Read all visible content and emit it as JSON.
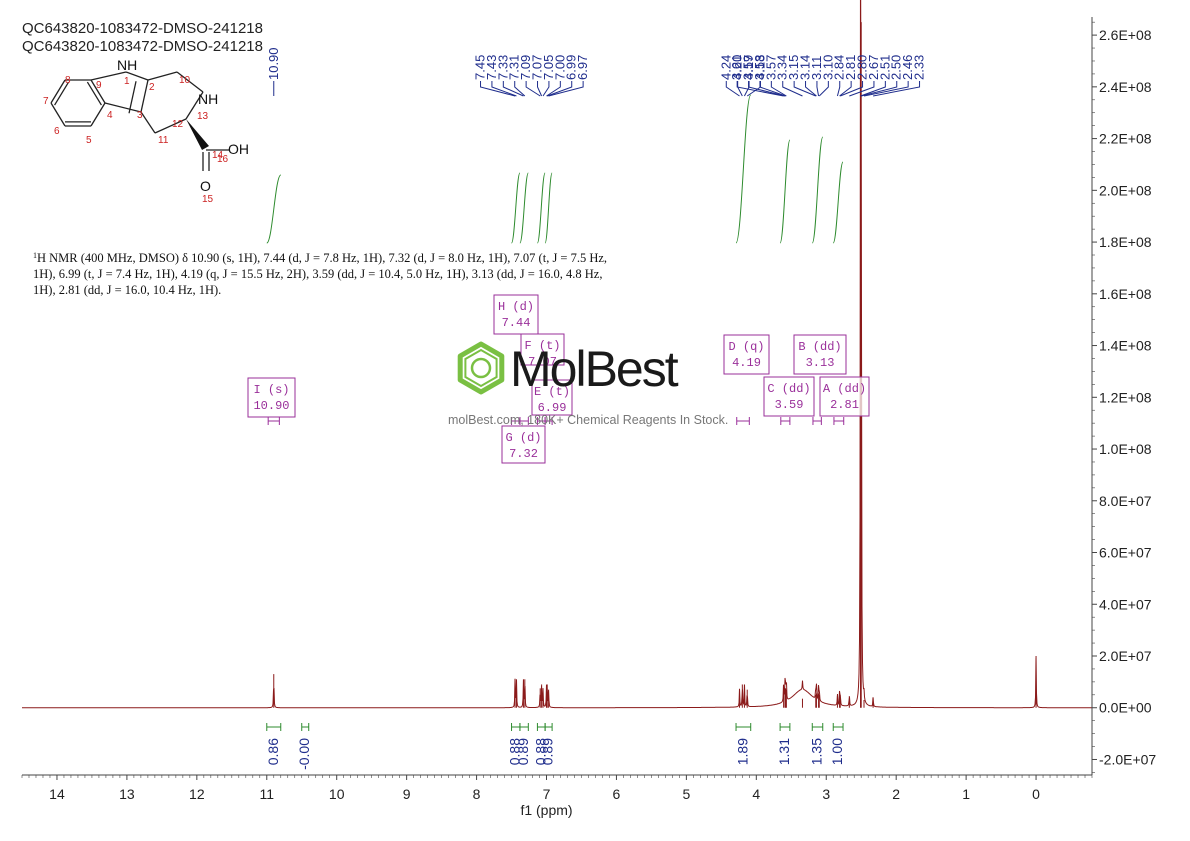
{
  "sample_titles": [
    "QC643820-1083472-DMSO-241218",
    "QC643820-1083472-DMSO-241218"
  ],
  "nmr_text": {
    "label": "H NMR (400 MHz, DMSO) δ 10.90 (s, 1H), 7.44 (d, J = 7.8 Hz, 1H), 7.32 (d, J = 8.0 Hz, 1H), 7.07 (t, J = 7.5 Hz, 1H), 6.99 (t, J = 7.4 Hz, 1H), 4.19 (q, J = 15.5 Hz, 2H), 3.59 (dd, J = 10.4, 5.0 Hz, 1H), 3.13 (dd, J = 16.0, 4.8 Hz, 1H), 2.81 (dd, J = 16.0, 10.4 Hz, 1H).",
    "sup": "1"
  },
  "watermark": {
    "brand": "MolBest",
    "subtitle": "molBest.com, 180K+ Chemical Reagents In Stock."
  },
  "structure": {
    "atoms": [
      "NH",
      "1",
      "2",
      "3",
      "4",
      "5",
      "6",
      "7",
      "8",
      "9",
      "10",
      "11",
      "12",
      "13",
      "14",
      "15",
      "16",
      "NH",
      "OH",
      "O"
    ]
  },
  "colors": {
    "spectrum": "#8b1a1a",
    "peak_labels": "#1f2d8c",
    "integrals": "#2e8b2e",
    "multiplet_boxes": "#9a2f9a",
    "molecule_labels": "#cc2222",
    "watermark_green": "#7ac043"
  },
  "chart_data": {
    "type": "line",
    "xlabel": "f1 (ppm)",
    "x_ticks": [
      14,
      13,
      12,
      11,
      10,
      9,
      8,
      7,
      6,
      5,
      4,
      3,
      2,
      1,
      0
    ],
    "xlim": [
      14.5,
      -0.8
    ],
    "y_ticks": [
      "2.6E+08",
      "2.4E+08",
      "2.2E+08",
      "2.0E+08",
      "1.8E+08",
      "1.6E+08",
      "1.4E+08",
      "1.2E+08",
      "1.0E+08",
      "8.0E+07",
      "6.0E+07",
      "4.0E+07",
      "2.0E+07",
      "0.0E+00",
      "-2.0E+07"
    ],
    "ylim": [
      -26000000.0,
      267000000.0
    ],
    "y_axis_side": "right",
    "peaks": [
      {
        "ppm": 10.9,
        "height": 13000000.0
      },
      {
        "ppm": 7.45,
        "height": 11000000.0
      },
      {
        "ppm": 7.43,
        "height": 11000000.0
      },
      {
        "ppm": 7.33,
        "height": 11000000.0
      },
      {
        "ppm": 7.31,
        "height": 11000000.0
      },
      {
        "ppm": 7.09,
        "height": 7500000.0
      },
      {
        "ppm": 7.07,
        "height": 9000000.0
      },
      {
        "ppm": 7.05,
        "height": 7000000.0
      },
      {
        "ppm": 7.0,
        "height": 7500000.0
      },
      {
        "ppm": 6.99,
        "height": 9000000.0
      },
      {
        "ppm": 6.97,
        "height": 7000000.0
      },
      {
        "ppm": 4.24,
        "height": 7000000.0
      },
      {
        "ppm": 4.2,
        "height": 9000000.0
      },
      {
        "ppm": 4.17,
        "height": 9000000.0
      },
      {
        "ppm": 4.13,
        "height": 7000000.0
      },
      {
        "ppm": 3.61,
        "height": 7000000.0
      },
      {
        "ppm": 3.59,
        "height": 7500000.0
      },
      {
        "ppm": 3.58,
        "height": 7500000.0
      },
      {
        "ppm": 3.57,
        "height": 7000000.0
      },
      {
        "ppm": 3.34,
        "height": 3500000.0
      },
      {
        "ppm": 3.15,
        "height": 5000000.0
      },
      {
        "ppm": 3.14,
        "height": 5500000.0
      },
      {
        "ppm": 3.11,
        "height": 5500000.0
      },
      {
        "ppm": 3.1,
        "height": 5000000.0
      },
      {
        "ppm": 2.84,
        "height": 4500000.0
      },
      {
        "ppm": 2.81,
        "height": 5000000.0
      },
      {
        "ppm": 2.8,
        "height": 5000000.0
      },
      {
        "ppm": 2.67,
        "height": 4500000.0
      },
      {
        "ppm": 2.51,
        "height": 265000000.0
      },
      {
        "ppm": 2.5,
        "height": 265000000.0
      },
      {
        "ppm": 2.46,
        "height": 3000000.0
      },
      {
        "ppm": 2.33,
        "height": 4000000.0
      },
      {
        "ppm": 0.0,
        "height": 20000000.0
      }
    ],
    "broad_humps": [
      {
        "ppm": 3.34,
        "height": 7000000.0,
        "width": 0.18
      }
    ],
    "peak_labels_groups": [
      {
        "labels": [
          "10.90"
        ]
      },
      {
        "labels": [
          "7.45",
          "7.43",
          "7.33",
          "7.31",
          "7.09",
          "7.07",
          "7.05",
          "7.00",
          "6.99",
          "6.97"
        ]
      },
      {
        "labels": [
          "4.24",
          "4.20",
          "4.17",
          "4.13"
        ]
      },
      {
        "labels": [
          "3.61",
          "3.59",
          "3.58",
          "3.57",
          "3.34",
          "3.15",
          "3.14",
          "3.11",
          "3.10",
          "2.84",
          "2.81",
          "2.80",
          "2.67",
          "2.51",
          "2.50",
          "2.46",
          "2.33"
        ]
      }
    ],
    "integrals": [
      {
        "from": 11.0,
        "to": 10.8,
        "value": "0.86"
      },
      {
        "from": 10.5,
        "to": 10.4,
        "value": "-0.00"
      },
      {
        "from": 7.5,
        "to": 7.38,
        "value": "0.88"
      },
      {
        "from": 7.38,
        "to": 7.26,
        "value": "0.89"
      },
      {
        "from": 7.13,
        "to": 7.02,
        "value": "0.88"
      },
      {
        "from": 7.02,
        "to": 6.92,
        "value": "0.89"
      },
      {
        "from": 4.29,
        "to": 4.08,
        "value": "1.89"
      },
      {
        "from": 3.66,
        "to": 3.52,
        "value": "1.31"
      },
      {
        "from": 3.2,
        "to": 3.05,
        "value": "1.35"
      },
      {
        "from": 2.9,
        "to": 2.76,
        "value": "1.00"
      }
    ],
    "multiplets": [
      {
        "letter": "I",
        "type": "s",
        "shift": "10.90"
      },
      {
        "letter": "H",
        "type": "d",
        "shift": "7.44"
      },
      {
        "letter": "F",
        "type": "t",
        "shift": "7.07"
      },
      {
        "letter": "E",
        "type": "t",
        "shift": "6.99"
      },
      {
        "letter": "G",
        "type": "d",
        "shift": "7.32"
      },
      {
        "letter": "D",
        "type": "q",
        "shift": "4.19"
      },
      {
        "letter": "C",
        "type": "dd",
        "shift": "3.59"
      },
      {
        "letter": "B",
        "type": "dd",
        "shift": "3.13"
      },
      {
        "letter": "A",
        "type": "dd",
        "shift": "2.81"
      }
    ]
  }
}
